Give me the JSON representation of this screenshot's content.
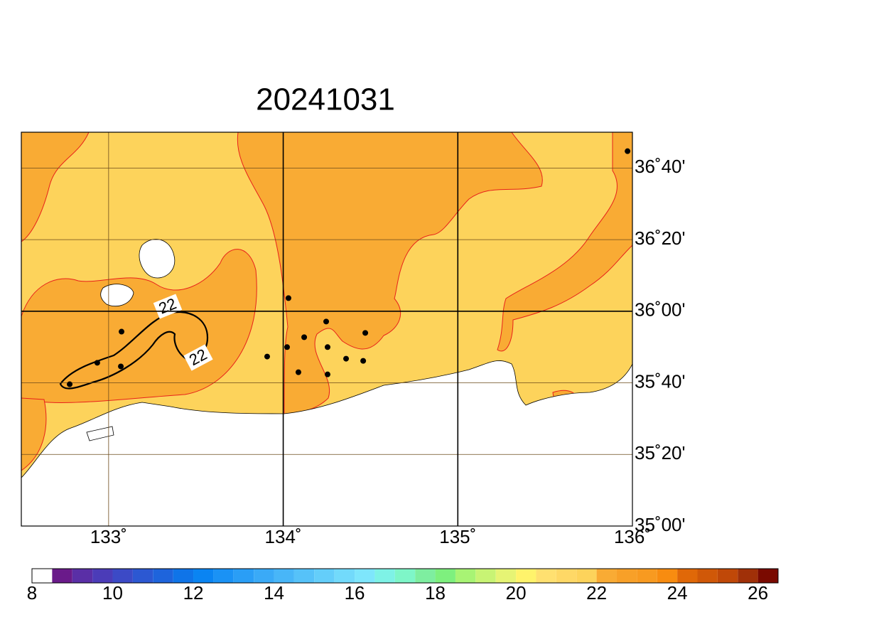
{
  "map": {
    "title": "20241031",
    "xlim": [
      132.5,
      136
    ],
    "ylim": [
      35,
      36.8333
    ],
    "lon_ticks": [
      {
        "value": 133,
        "label": "133˚"
      },
      {
        "value": 134,
        "label": "134˚"
      },
      {
        "value": 135,
        "label": "135˚"
      },
      {
        "value": 136,
        "label": "136˚"
      }
    ],
    "lat_ticks": [
      {
        "value": 35,
        "label": "35˚00'"
      },
      {
        "value": 35.3333,
        "label": "35˚20'"
      },
      {
        "value": 35.6667,
        "label": "35˚40'"
      },
      {
        "value": 36,
        "label": "36˚00'"
      },
      {
        "value": 36.3333,
        "label": "36˚20'"
      },
      {
        "value": 36.6667,
        "label": "36˚40'"
      }
    ],
    "major_lon": [
      134,
      135
    ],
    "major_lat": [
      36
    ],
    "contour_labels": [
      "22",
      "22"
    ],
    "stations": [
      {
        "lon": 135.972,
        "lat": 36.745
      },
      {
        "lon": 134.03,
        "lat": 36.061
      },
      {
        "lon": 134.246,
        "lat": 35.952
      },
      {
        "lon": 134.12,
        "lat": 35.879
      },
      {
        "lon": 134.47,
        "lat": 35.899
      },
      {
        "lon": 134.022,
        "lat": 35.833
      },
      {
        "lon": 134.254,
        "lat": 35.833
      },
      {
        "lon": 133.908,
        "lat": 35.789
      },
      {
        "lon": 134.36,
        "lat": 35.779
      },
      {
        "lon": 134.458,
        "lat": 35.769
      },
      {
        "lon": 134.087,
        "lat": 35.716
      },
      {
        "lon": 134.254,
        "lat": 35.706
      },
      {
        "lon": 133.074,
        "lat": 35.905
      },
      {
        "lon": 132.935,
        "lat": 35.76
      },
      {
        "lon": 133.07,
        "lat": 35.743
      },
      {
        "lon": 132.777,
        "lat": 35.66
      }
    ],
    "colorbar": {
      "range": [
        8,
        26.5
      ],
      "ticks": [
        8,
        10,
        12,
        14,
        16,
        18,
        20,
        22,
        24,
        26
      ],
      "colors": [
        "#ffffff",
        "#6a1a8a",
        "#5a2fa6",
        "#4b3cb8",
        "#3c4ac6",
        "#2c58d2",
        "#1e64dc",
        "#0f74e8",
        "#0a84f2",
        "#1a92f5",
        "#2a9ef6",
        "#3aaaf7",
        "#48b6f8",
        "#56c2f9",
        "#64cefa",
        "#72dafb",
        "#7ee6fc",
        "#7ef2e6",
        "#7ef6c8",
        "#7eeea0",
        "#7ef07e",
        "#a8f474",
        "#c8f474",
        "#e6f474",
        "#fff36b",
        "#ffe070",
        "#fed866",
        "#fdd35b",
        "#f9ab34",
        "#f8a028",
        "#f89a20",
        "#f88c10",
        "#e06808",
        "#d05808",
        "#c04808",
        "#a03008",
        "#7a0a00"
      ]
    }
  }
}
